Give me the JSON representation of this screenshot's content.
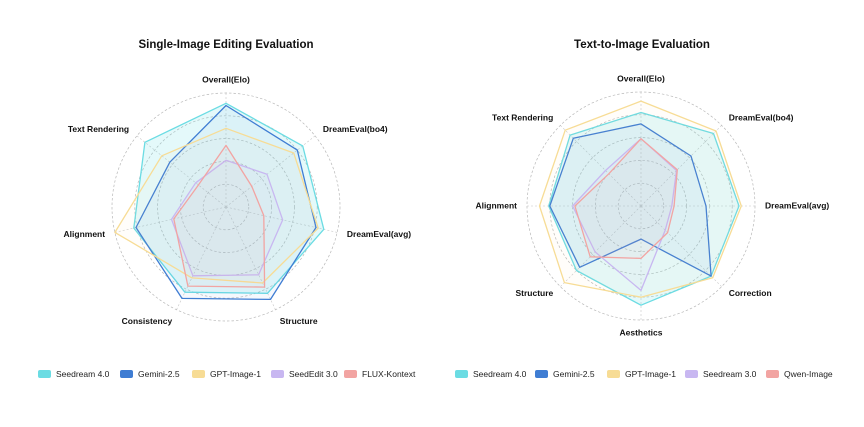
{
  "chart_data": [
    {
      "type": "radar",
      "title": "Single-Image Editing Evaluation",
      "axes": [
        "Overall(Elo)",
        "DreamEval(bo4)",
        "DreamEval(avg)",
        "Structure",
        "Consistency",
        "Alignment",
        "Text Rendering"
      ],
      "range": [
        0,
        1
      ],
      "grid": true,
      "grid_rings": 5,
      "legend_position": "bottom",
      "series": [
        {
          "name": "Seedream 4.0",
          "color": "#6BDCE3",
          "values": [
            0.91,
            0.86,
            0.88,
            0.84,
            0.83,
            0.83,
            0.91
          ]
        },
        {
          "name": "Gemini-2.5",
          "color": "#3F7DD3",
          "values": [
            0.89,
            0.8,
            0.81,
            0.9,
            0.89,
            0.81,
            0.63
          ]
        },
        {
          "name": "GPT-Image-1",
          "color": "#F7DC95",
          "values": [
            0.69,
            0.76,
            0.83,
            0.74,
            0.69,
            1.0,
            0.72
          ]
        },
        {
          "name": "SeedEdit 3.0",
          "color": "#C8B7F1",
          "values": [
            0.41,
            0.46,
            0.51,
            0.66,
            0.67,
            0.49,
            0.34
          ]
        },
        {
          "name": "FLUX-Kontext",
          "color": "#F2A4A2",
          "values": [
            0.54,
            0.29,
            0.34,
            0.78,
            0.77,
            0.47,
            0.31
          ]
        }
      ]
    },
    {
      "type": "radar",
      "title": "Text-to-Image Evaluation",
      "axes": [
        "Overall(Elo)",
        "DreamEval(bo4)",
        "DreamEval(avg)",
        "Correction",
        "Aesthetics",
        "Structure",
        "Alignment",
        "Text Rendering"
      ],
      "range": [
        0,
        1
      ],
      "grid": true,
      "grid_rings": 5,
      "legend_position": "bottom",
      "series": [
        {
          "name": "Seedream 4.0",
          "color": "#6BDCE3",
          "values": [
            0.82,
            0.9,
            0.86,
            0.87,
            0.87,
            0.8,
            0.81,
            0.88
          ]
        },
        {
          "name": "Gemini-2.5",
          "color": "#3F7DD3",
          "values": [
            0.72,
            0.62,
            0.57,
            0.87,
            0.29,
            0.76,
            0.8,
            0.84
          ]
        },
        {
          "name": "GPT-Image-1",
          "color": "#F7DC95",
          "values": [
            0.92,
            0.93,
            0.88,
            0.89,
            0.8,
            0.95,
            0.89,
            0.94
          ]
        },
        {
          "name": "Seedream 3.0",
          "color": "#C8B7F1",
          "values": [
            0.59,
            0.44,
            0.27,
            0.3,
            0.74,
            0.57,
            0.6,
            0.44
          ]
        },
        {
          "name": "Qwen-Image",
          "color": "#F2A4A2",
          "values": [
            0.59,
            0.45,
            0.29,
            0.33,
            0.46,
            0.63,
            0.58,
            0.4
          ]
        }
      ]
    }
  ]
}
